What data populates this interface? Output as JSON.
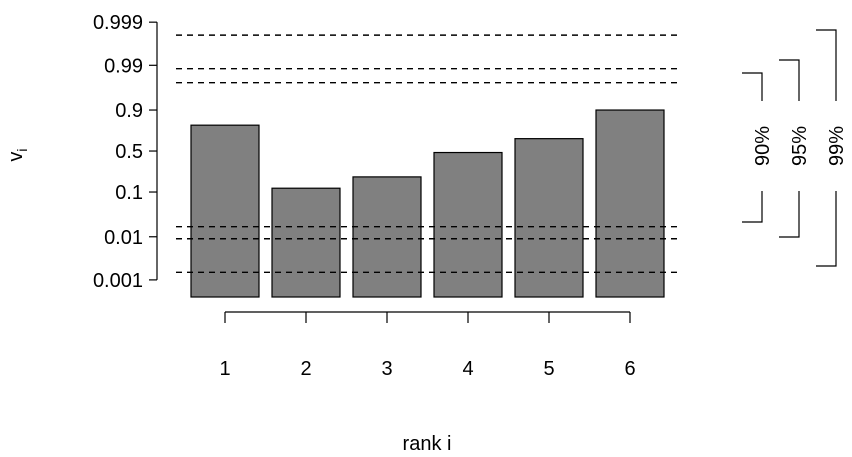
{
  "chart_data": {
    "type": "bar",
    "title": "",
    "xlabel": "rank i",
    "ylabel_main": "v",
    "ylabel_sub": "i",
    "y_scale": "logit",
    "ylim": [
      0.0004,
      0.9992
    ],
    "y_ticks": [
      {
        "value": 0.001,
        "label": "0.001"
      },
      {
        "value": 0.01,
        "label": "0.01"
      },
      {
        "value": 0.1,
        "label": "0.1"
      },
      {
        "value": 0.5,
        "label": "0.5"
      },
      {
        "value": 0.9,
        "label": "0.9"
      },
      {
        "value": 0.99,
        "label": "0.99"
      },
      {
        "value": 0.999,
        "label": "0.999"
      }
    ],
    "categories": [
      "1",
      "2",
      "3",
      "4",
      "5",
      "6"
    ],
    "values": [
      0.8,
      0.12,
      0.2,
      0.48,
      0.66,
      0.9
    ],
    "bar_color": "#808080",
    "reference_lines": [
      {
        "level": "90%",
        "lower": 0.017,
        "upper": 0.975
      },
      {
        "level": "95%",
        "lower": 0.009,
        "upper": 0.988
      },
      {
        "level": "99%",
        "lower": 0.0015,
        "upper": 0.998
      }
    ],
    "grid": false,
    "legend": "none"
  }
}
